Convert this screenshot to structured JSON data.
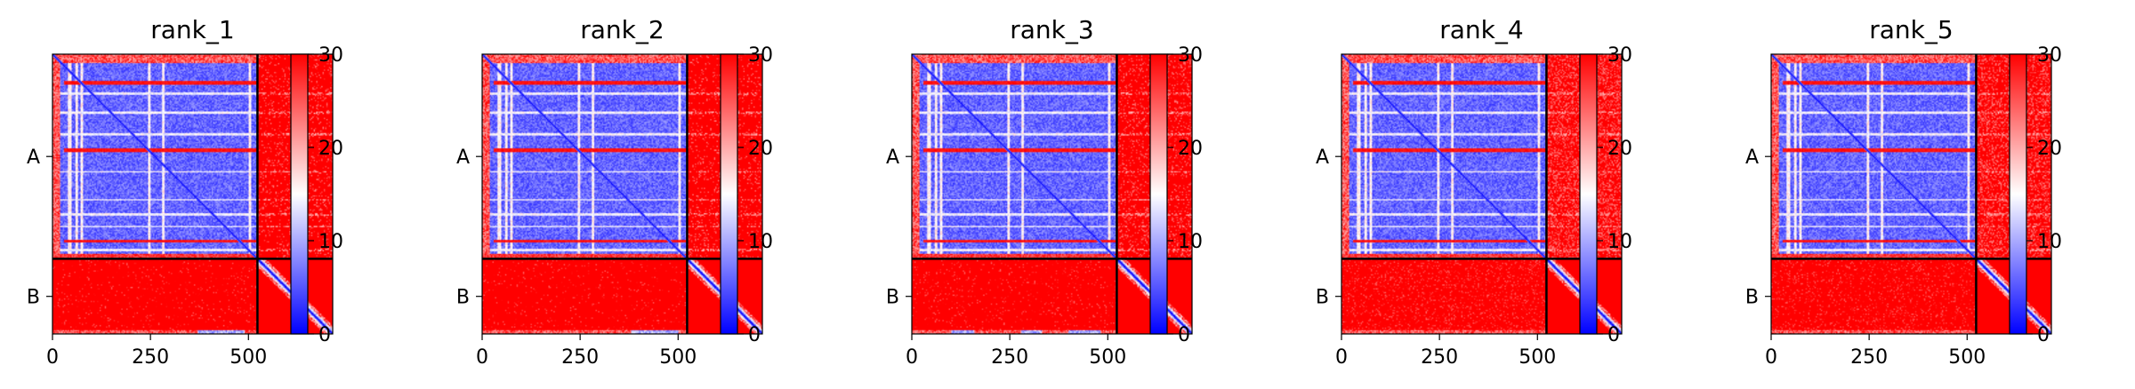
{
  "chart_data": [
    {
      "type": "heatmap",
      "title": "rank_1",
      "chains": [
        {
          "label": "A",
          "length": 523
        },
        {
          "label": "B",
          "length": 192
        }
      ],
      "xticks": [
        0,
        250,
        500
      ],
      "yticks": [
        "A",
        "B"
      ],
      "xlim": [
        0,
        715
      ],
      "colorbar": {
        "min": 0,
        "max": 30,
        "ticks": [
          0,
          10,
          20,
          30
        ]
      },
      "red_rows": [
        73,
        246,
        478
      ],
      "white_rows": [
        100,
        150,
        204,
        300,
        372,
        410,
        440,
        500
      ],
      "white_cols": [
        44,
        61,
        75,
        246,
        283,
        505
      ],
      "b_blue_streaks": [
        [
          370,
          490
        ]
      ],
      "ab_block_noise": 0.12
    },
    {
      "type": "heatmap",
      "title": "rank_2",
      "chains": [
        {
          "label": "A",
          "length": 523
        },
        {
          "label": "B",
          "length": 192
        }
      ],
      "xticks": [
        0,
        250,
        500
      ],
      "yticks": [
        "A",
        "B"
      ],
      "xlim": [
        0,
        715
      ],
      "colorbar": {
        "min": 0,
        "max": 30,
        "ticks": [
          0,
          10,
          20,
          30
        ]
      },
      "red_rows": [
        73,
        246,
        478
      ],
      "white_rows": [
        100,
        150,
        204,
        300,
        372,
        410,
        440,
        500
      ],
      "white_cols": [
        44,
        61,
        75,
        246,
        283,
        505
      ],
      "b_blue_streaks": [
        [
          380,
          500
        ]
      ],
      "ab_block_noise": 0.1
    },
    {
      "type": "heatmap",
      "title": "rank_3",
      "chains": [
        {
          "label": "A",
          "length": 523
        },
        {
          "label": "B",
          "length": 192
        }
      ],
      "xticks": [
        0,
        250,
        500
      ],
      "yticks": [
        "A",
        "B"
      ],
      "xlim": [
        0,
        715
      ],
      "colorbar": {
        "min": 0,
        "max": 30,
        "ticks": [
          0,
          10,
          20,
          30
        ]
      },
      "red_rows": [
        73,
        246,
        478
      ],
      "white_rows": [
        100,
        150,
        204,
        300,
        372,
        410,
        440,
        500
      ],
      "white_cols": [
        44,
        61,
        75,
        246,
        283,
        505
      ],
      "b_blue_streaks": [
        [
          100,
          160
        ],
        [
          280,
          330
        ],
        [
          400,
          480
        ]
      ],
      "ab_block_noise": 0.15
    },
    {
      "type": "heatmap",
      "title": "rank_4",
      "chains": [
        {
          "label": "A",
          "length": 523
        },
        {
          "label": "B",
          "length": 192
        }
      ],
      "xticks": [
        0,
        250,
        500
      ],
      "yticks": [
        "A",
        "B"
      ],
      "xlim": [
        0,
        715
      ],
      "colorbar": {
        "min": 0,
        "max": 30,
        "ticks": [
          0,
          10,
          20,
          30
        ]
      },
      "red_rows": [
        73,
        246,
        478
      ],
      "white_rows": [
        100,
        150,
        204,
        300,
        372,
        410,
        440,
        500
      ],
      "white_cols": [
        44,
        61,
        75,
        246,
        283,
        505
      ],
      "b_blue_streaks": [],
      "ab_block_noise": 0.35
    },
    {
      "type": "heatmap",
      "title": "rank_5",
      "chains": [
        {
          "label": "A",
          "length": 523
        },
        {
          "label": "B",
          "length": 192
        }
      ],
      "xticks": [
        0,
        250,
        500
      ],
      "yticks": [
        "A",
        "B"
      ],
      "xlim": [
        0,
        715
      ],
      "colorbar": {
        "min": 0,
        "max": 30,
        "ticks": [
          0,
          10,
          20,
          30
        ]
      },
      "red_rows": [
        73,
        246,
        478
      ],
      "white_rows": [
        100,
        150,
        204,
        300,
        372,
        410,
        440,
        500
      ],
      "white_cols": [
        44,
        61,
        75,
        246,
        283,
        505
      ],
      "b_blue_streaks": [],
      "ab_block_noise": 0.3
    }
  ]
}
